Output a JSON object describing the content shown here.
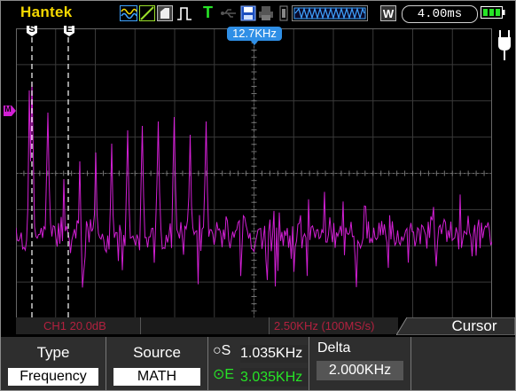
{
  "brand": "Hantek",
  "header": {
    "trigger_indicator": "T",
    "timebase": "4.00ms",
    "icons": [
      "math-waveform-icon",
      "ch-icon",
      "probe-icon",
      "trigger-edge-icon",
      "trigger-status-icon",
      "usb-icon",
      "save-icon",
      "print-icon",
      "memory-depth-icon",
      "waveform-strip-icon",
      "w-mode-icon",
      "battery-icon"
    ]
  },
  "markers": {
    "cursor_s": "S",
    "cursor_e": "E",
    "trigger_readout": "12.7KHz",
    "channel_marker": "M",
    "trigger_level_icon": "plug-icon"
  },
  "status": {
    "channel": "CH1 20.0dB",
    "timebase": "2.50KHz (100MS/s)",
    "menu_title": "Cursor"
  },
  "softkeys": {
    "type_title": "Type",
    "type_value": "Frequency",
    "source_title": "Source",
    "source_value": "MATH",
    "s_label": "S",
    "s_value": "1.035KHz",
    "e_label": "E",
    "e_value": "3.035KHz",
    "delta_title": "Delta",
    "delta_value": "2.000KHz"
  },
  "colors": {
    "brand": "#f5d800",
    "trace": "#d21fd4",
    "cursor_active": "#27e427",
    "status_text": "#b2213f",
    "trigger_marker": "#2f8fe6"
  },
  "trace_peaks_frequency_kHz": [
    1.0,
    2.0,
    3.0,
    4.0,
    5.0,
    6.0,
    7.0,
    8.0,
    9.0,
    10.0,
    11.0,
    12.0
  ]
}
